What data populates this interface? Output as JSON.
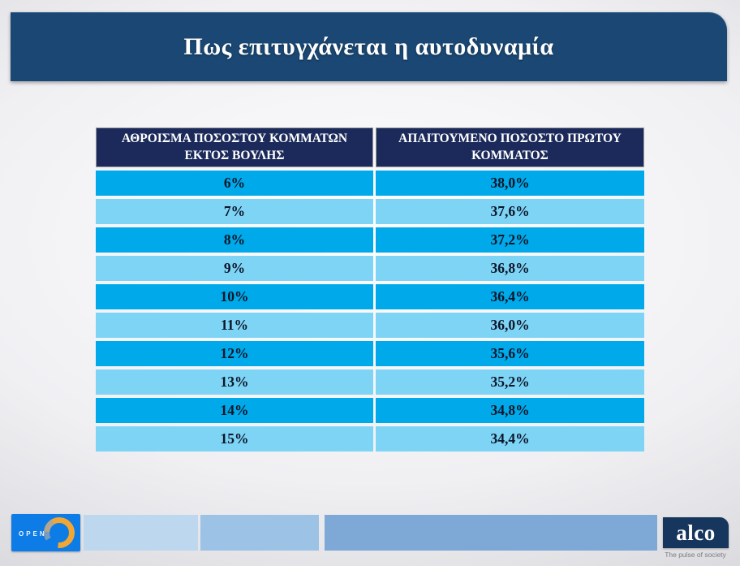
{
  "slide": {
    "title": "Πως επιτυγχάνεται η αυτοδυναμία"
  },
  "chart_data": {
    "type": "table",
    "title": "Πως επιτυγχάνεται η αυτοδυναμία",
    "columns": [
      "ΑΘΡΟΙΣΜΑ ΠΟΣΟΣΤΟΥ ΚΟΜΜΑΤΩΝ ΕΚΤΟΣ ΒΟΥΛΗΣ",
      "ΑΠΑΙΤΟΥΜΕΝΟ ΠΟΣΟΣΤΟ ΠΡΩΤΟΥ ΚΟΜΜΑΤΟΣ"
    ],
    "rows": [
      [
        "6%",
        "38,0%"
      ],
      [
        "7%",
        "37,6%"
      ],
      [
        "8%",
        "37,2%"
      ],
      [
        "9%",
        "36,8%"
      ],
      [
        "10%",
        "36,4%"
      ],
      [
        "11%",
        "36,0%"
      ],
      [
        "12%",
        "35,6%"
      ],
      [
        "13%",
        "35,2%"
      ],
      [
        "14%",
        "34,8%"
      ],
      [
        "15%",
        "34,4%"
      ]
    ],
    "row_style_alternation": [
      "dark",
      "light"
    ],
    "colors": {
      "title_bar": "#1a4773",
      "header_row": "#1b2a5a",
      "row_dark": "#00a9e9",
      "row_light": "#7dd4f5",
      "cell_text": "#0d1528"
    }
  },
  "footer": {
    "open": {
      "label": "OPEN",
      "bg": "#0d7ce6",
      "ring": "#f2a735"
    },
    "bars": [
      {
        "color": "#bdd7ee"
      },
      {
        "color": "#9cc2e5"
      },
      {
        "color": "#7ea9d6"
      }
    ],
    "alco": {
      "label": "alco",
      "tagline": "The pulse of society",
      "bg": "#17365d"
    }
  }
}
